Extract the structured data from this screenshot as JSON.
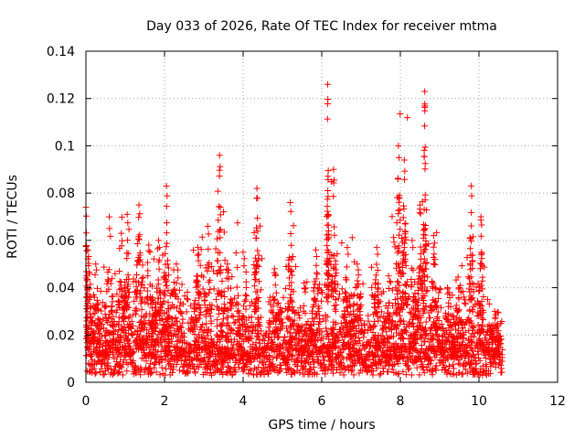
{
  "chart_data": {
    "type": "scatter",
    "title": "Day 033 of 2026, Rate Of TEC Index for receiver mtma",
    "xlabel": "GPS time / hours",
    "ylabel": "ROTI / TECUs",
    "xlim": [
      0,
      12
    ],
    "ylim": [
      0,
      0.14
    ],
    "xticks": [
      0,
      2,
      4,
      6,
      8,
      10,
      12
    ],
    "yticks": [
      0,
      0.02,
      0.04,
      0.06,
      0.08,
      0.1,
      0.12,
      0.14
    ],
    "xtick_labels": [
      "0",
      "2",
      "4",
      "6",
      "8",
      "10",
      "12"
    ],
    "ytick_labels": [
      "0",
      "0.02",
      "0.04",
      "0.06",
      "0.08",
      "0.1",
      "0.12",
      "0.14"
    ],
    "grid": true,
    "marker": "plus",
    "color": "#ff0000",
    "data_extent_hours": [
      0,
      10.6
    ],
    "baseline_roti": 0.01,
    "bursts": [
      {
        "t": 0.0,
        "peak": 0.074,
        "width": 0.05
      },
      {
        "t": 0.05,
        "peak": 0.056,
        "width": 0.1
      },
      {
        "t": 0.25,
        "peak": 0.05,
        "width": 0.1
      },
      {
        "t": 0.6,
        "peak": 0.065,
        "width": 0.12
      },
      {
        "t": 0.9,
        "peak": 0.063,
        "width": 0.1
      },
      {
        "t": 1.05,
        "peak": 0.071,
        "width": 0.08
      },
      {
        "t": 1.35,
        "peak": 0.075,
        "width": 0.1
      },
      {
        "t": 1.6,
        "peak": 0.058,
        "width": 0.15
      },
      {
        "t": 1.85,
        "peak": 0.06,
        "width": 0.1
      },
      {
        "t": 2.05,
        "peak": 0.083,
        "width": 0.07
      },
      {
        "t": 2.3,
        "peak": 0.05,
        "width": 0.2
      },
      {
        "t": 2.85,
        "peak": 0.057,
        "width": 0.1
      },
      {
        "t": 3.1,
        "peak": 0.066,
        "width": 0.1
      },
      {
        "t": 3.4,
        "peak": 0.096,
        "width": 0.07
      },
      {
        "t": 3.6,
        "peak": 0.05,
        "width": 0.15
      },
      {
        "t": 4.0,
        "peak": 0.055,
        "width": 0.15
      },
      {
        "t": 4.35,
        "peak": 0.082,
        "width": 0.07
      },
      {
        "t": 4.8,
        "peak": 0.048,
        "width": 0.15
      },
      {
        "t": 5.2,
        "peak": 0.076,
        "width": 0.07
      },
      {
        "t": 5.55,
        "peak": 0.042,
        "width": 0.2
      },
      {
        "t": 5.85,
        "peak": 0.056,
        "width": 0.1
      },
      {
        "t": 6.15,
        "peak": 0.126,
        "width": 0.03
      },
      {
        "t": 6.3,
        "peak": 0.09,
        "width": 0.07
      },
      {
        "t": 6.65,
        "peak": 0.057,
        "width": 0.1
      },
      {
        "t": 6.9,
        "peak": 0.05,
        "width": 0.15
      },
      {
        "t": 7.4,
        "peak": 0.057,
        "width": 0.1
      },
      {
        "t": 7.7,
        "peak": 0.045,
        "width": 0.15
      },
      {
        "t": 7.95,
        "peak": 0.1,
        "width": 0.08
      },
      {
        "t": 8.1,
        "peak": 0.094,
        "width": 0.06
      },
      {
        "t": 8.3,
        "peak": 0.06,
        "width": 0.1
      },
      {
        "t": 8.5,
        "peak": 0.075,
        "width": 0.08
      },
      {
        "t": 8.62,
        "peak": 0.123,
        "width": 0.04
      },
      {
        "t": 8.85,
        "peak": 0.062,
        "width": 0.1
      },
      {
        "t": 9.2,
        "peak": 0.04,
        "width": 0.2
      },
      {
        "t": 9.5,
        "peak": 0.04,
        "width": 0.2
      },
      {
        "t": 9.8,
        "peak": 0.083,
        "width": 0.07
      },
      {
        "t": 10.05,
        "peak": 0.07,
        "width": 0.08
      },
      {
        "t": 10.4,
        "peak": 0.03,
        "width": 0.15
      }
    ]
  }
}
